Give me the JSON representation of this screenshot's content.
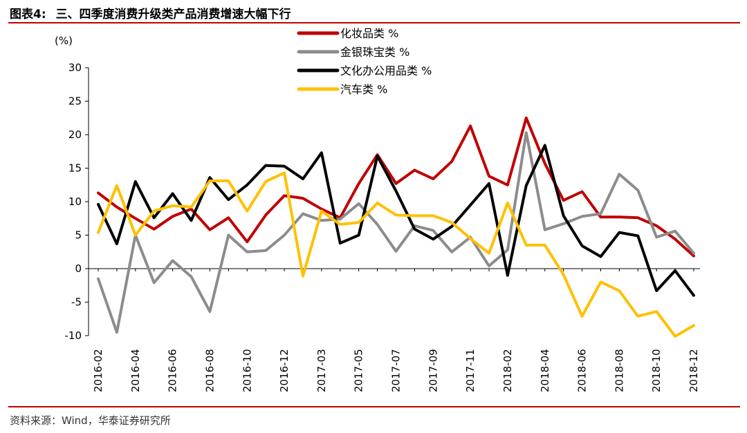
{
  "header": {
    "figure_label": "图表4:",
    "title": "三、四季度消费升级类产品消费增速大幅下行"
  },
  "source": "资料来源：Wind，华泰证券研究所",
  "chart_data": {
    "type": "line",
    "title": "三、四季度消费升级类产品消费增速大幅下行",
    "ylabel": "(%)",
    "xlabel": "",
    "ylim": [
      -10,
      30
    ],
    "yticks": [
      30,
      25,
      20,
      15,
      10,
      5,
      0,
      -5,
      -10
    ],
    "grid": false,
    "legend_position": "top-center",
    "x_tick_labels": [
      "2016-02",
      "2016-04",
      "2016-06",
      "2016-08",
      "2016-10",
      "2016-12",
      "2017-03",
      "2017-05",
      "2017-07",
      "2017-09",
      "2017-11",
      "2018-02",
      "2018-04",
      "2018-06",
      "2018-08",
      "2018-10",
      "2018-12"
    ],
    "categories": [
      "2016-02",
      "2016-03",
      "2016-04",
      "2016-05",
      "2016-06",
      "2016-07",
      "2016-08",
      "2016-09",
      "2016-10",
      "2016-11",
      "2016-12",
      "2017-02",
      "2017-03",
      "2017-04",
      "2017-05",
      "2017-06",
      "2017-07",
      "2017-08",
      "2017-09",
      "2017-10",
      "2017-11",
      "2017-12",
      "2018-02",
      "2018-03",
      "2018-04",
      "2018-05",
      "2018-06",
      "2018-07",
      "2018-08",
      "2018-09",
      "2018-10",
      "2018-11",
      "2018-12"
    ],
    "series": [
      {
        "name": "化妆品类 %",
        "color": "#c00000",
        "values": [
          11.3,
          9.2,
          7.5,
          5.9,
          7.8,
          8.9,
          5.8,
          7.6,
          4.0,
          8.0,
          10.9,
          10.5,
          8.9,
          7.6,
          12.7,
          17.0,
          12.7,
          14.7,
          13.4,
          16.0,
          21.3,
          13.8,
          12.5,
          22.5,
          15.7,
          10.2,
          11.5,
          7.7,
          7.7,
          7.6,
          6.4,
          4.4,
          1.9
        ]
      },
      {
        "name": "金银珠宝类 %",
        "color": "#8c8c8c",
        "values": [
          -1.5,
          -9.5,
          5.0,
          -2.1,
          1.2,
          -1.2,
          -6.4,
          5.0,
          2.5,
          2.7,
          5.0,
          8.2,
          7.2,
          7.4,
          9.7,
          6.6,
          2.6,
          6.4,
          5.7,
          2.5,
          4.7,
          0.4,
          2.8,
          20.3,
          5.8,
          6.7,
          7.8,
          8.2,
          14.1,
          11.7,
          4.7,
          5.6,
          2.3
        ]
      },
      {
        "name": "文化办公用品类 %",
        "color": "#000000",
        "values": [
          9.6,
          3.7,
          13.0,
          7.6,
          11.2,
          7.2,
          13.6,
          10.3,
          12.5,
          15.4,
          15.3,
          13.4,
          17.3,
          3.8,
          5.0,
          16.8,
          11.6,
          5.9,
          4.4,
          6.3,
          9.5,
          12.7,
          -1.0,
          12.4,
          18.4,
          7.9,
          3.4,
          1.8,
          5.4,
          4.9,
          -3.3,
          -0.3,
          -4.0
        ]
      },
      {
        "name": "汽车类 %",
        "color": "#ffc000",
        "values": [
          5.4,
          12.4,
          5.0,
          8.6,
          9.4,
          9.2,
          13.1,
          13.1,
          8.6,
          13.0,
          14.3,
          -1.1,
          8.6,
          6.6,
          6.9,
          9.8,
          8.0,
          7.9,
          7.9,
          6.9,
          4.5,
          2.3,
          9.8,
          3.5,
          3.5,
          -0.9,
          -7.1,
          -2.0,
          -3.3,
          -7.1,
          -6.4,
          -10.1,
          -8.5
        ]
      }
    ]
  }
}
